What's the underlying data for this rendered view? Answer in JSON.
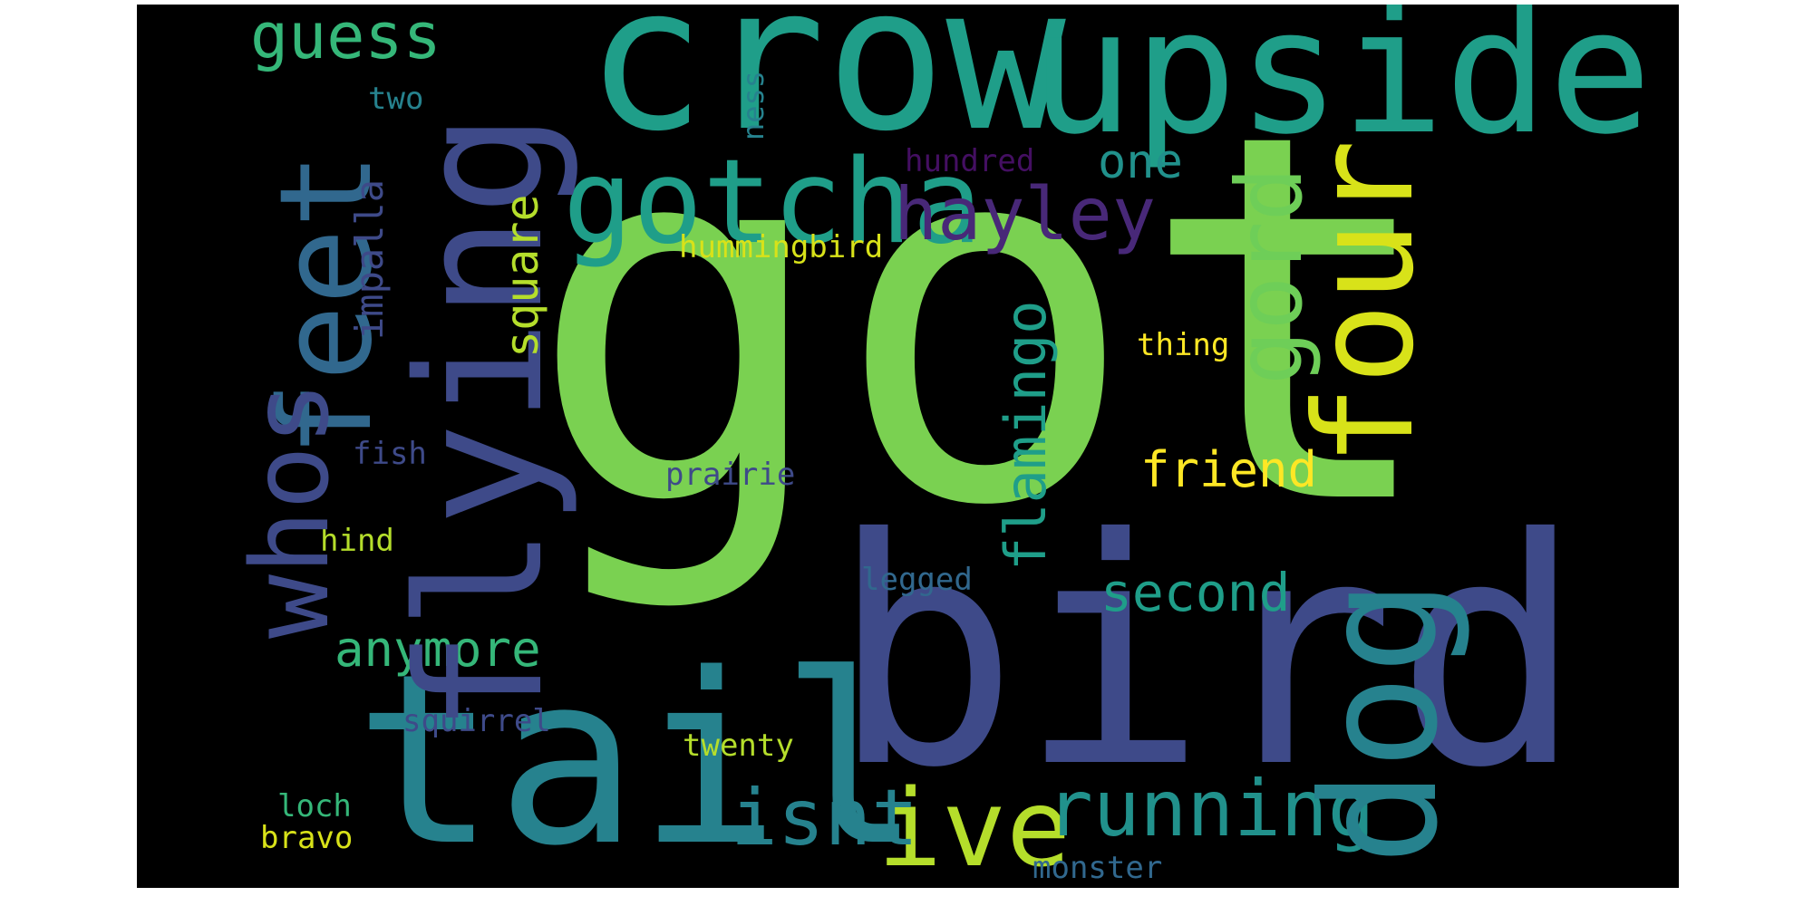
{
  "palette": {
    "background": "#000000",
    "dark_purple": "#440f62",
    "indigo": "#3e4a89",
    "steel_blue": "#31688e",
    "teal": "#26828e",
    "green_teal": "#1f9e89",
    "green": "#35b779",
    "light_green": "#6ece58",
    "lime": "#b5de2b",
    "yellow": "#fde725"
  },
  "words": {
    "got": "got",
    "bird": "bird",
    "crow": "crow",
    "upside": "upside",
    "flying": "flying",
    "tail": "tail",
    "feet": "feet",
    "whos": "whos",
    "gotcha": "gotcha",
    "dog": "dog",
    "four": "four",
    "gord": "gord",
    "ive": "ive",
    "hayley": "hayley",
    "running": "running",
    "isnt": "isnt",
    "flamingo": "flamingo",
    "guess": "guess",
    "second": "second",
    "anymore": "anymore",
    "friend": "friend",
    "one": "one",
    "square": "square",
    "impalla": "impalla",
    "hummingbird": "hummingbird",
    "thing": "thing",
    "hundred": "hundred",
    "prairie": "prairie",
    "legged": "legged",
    "squirrel": "squirrel",
    "twenty": "twenty",
    "fish": "fish",
    "hind": "hind",
    "loch": "loch",
    "bravo": "bravo",
    "monster": "monster",
    "two": "two",
    "ness": "ness"
  }
}
